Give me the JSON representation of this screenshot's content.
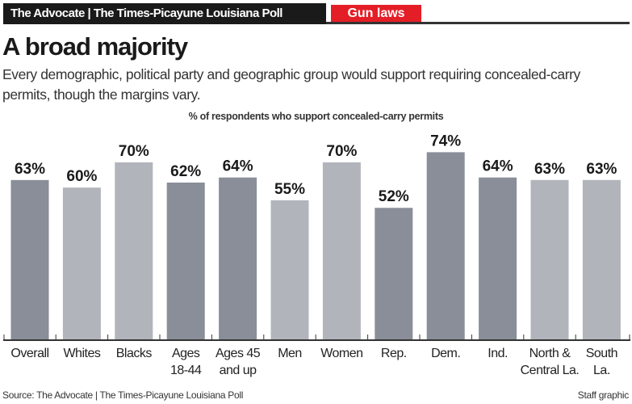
{
  "header": {
    "publication": "The Advocate | The Times-Picayune Louisiana Poll",
    "topic": "Gun laws"
  },
  "title": "A broad majority",
  "subtitle": "Every demographic, political party and geographic group would support requiring concealed-carry permits, though the margins vary.",
  "footer": {
    "source": "Source: The Advocate | The Times-Picayune Louisiana Poll",
    "credit": "Staff graphic"
  },
  "colors": {
    "dark_bar": "#898e99",
    "light_bar": "#b2b4bc",
    "topic_tag": "#e41e26"
  },
  "chart_data": {
    "type": "bar",
    "title": "% of respondents who support concealed-carry permits",
    "categories": [
      [
        "Overall"
      ],
      [
        "Whites"
      ],
      [
        "Blacks"
      ],
      [
        "Ages",
        "18-44"
      ],
      [
        "Ages 45",
        "and up"
      ],
      [
        "Men"
      ],
      [
        "Women"
      ],
      [
        "Rep."
      ],
      [
        "Dem."
      ],
      [
        "Ind."
      ],
      [
        "North &",
        "Central La."
      ],
      [
        "South",
        "La."
      ]
    ],
    "values": [
      63,
      60,
      70,
      62,
      64,
      55,
      70,
      52,
      74,
      64,
      63,
      63
    ],
    "data_labels": [
      "63%",
      "60%",
      "70%",
      "62%",
      "64%",
      "55%",
      "70%",
      "52%",
      "74%",
      "64%",
      "63%",
      "63%"
    ],
    "bar_shades": [
      "dark",
      "light",
      "light",
      "dark",
      "dark",
      "light",
      "light",
      "dark",
      "dark",
      "dark",
      "light",
      "light"
    ],
    "ylim": [
      0,
      100
    ],
    "grid": false
  }
}
